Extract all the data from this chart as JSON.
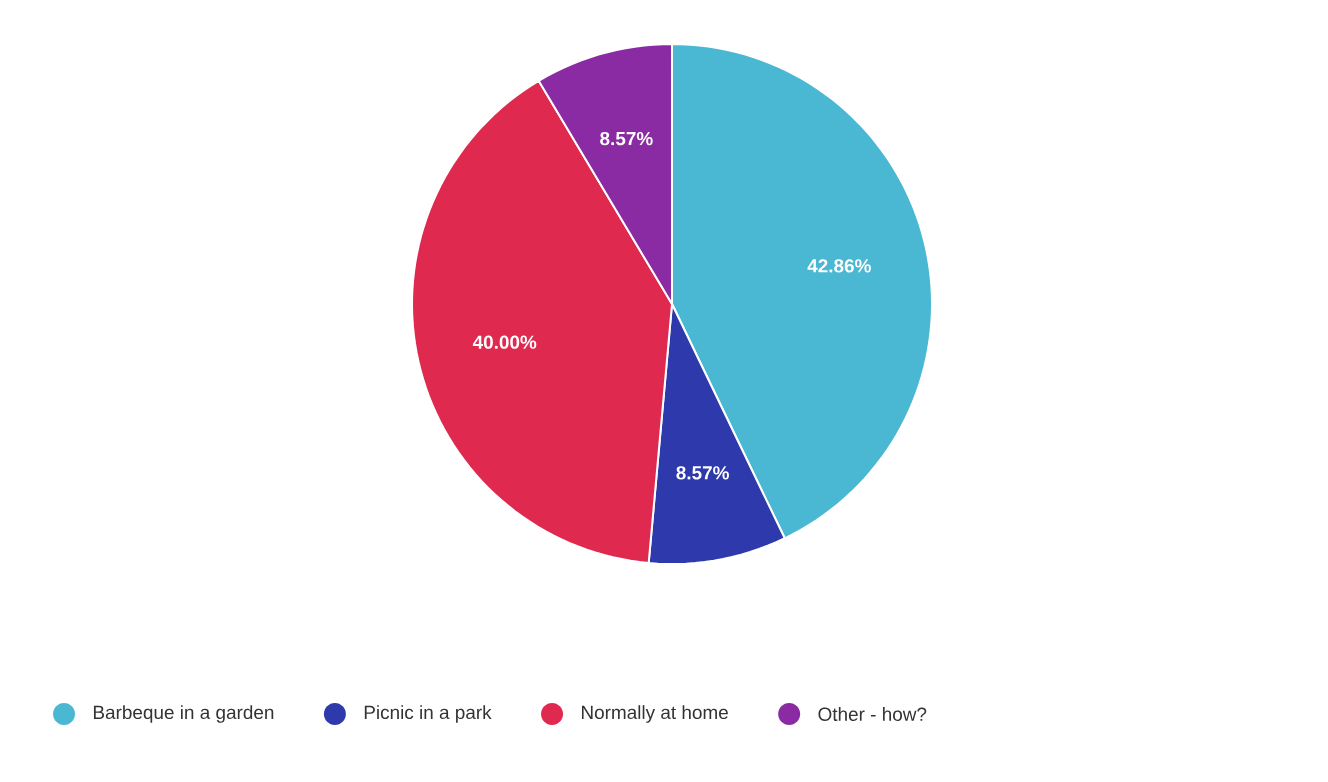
{
  "chart_data": {
    "type": "pie",
    "categories": [
      "Barbeque in a garden",
      "Picnic in a park",
      "Normally at home",
      "Other - how?"
    ],
    "values": [
      42.86,
      8.57,
      40.0,
      8.57
    ],
    "value_labels": [
      "42.86%",
      "8.57%",
      "40.00%",
      "8.57%"
    ],
    "colors": [
      "#4ab7d3",
      "#2e3aac",
      "#e0294f",
      "#8b2ba3"
    ],
    "legend": "bottom"
  }
}
